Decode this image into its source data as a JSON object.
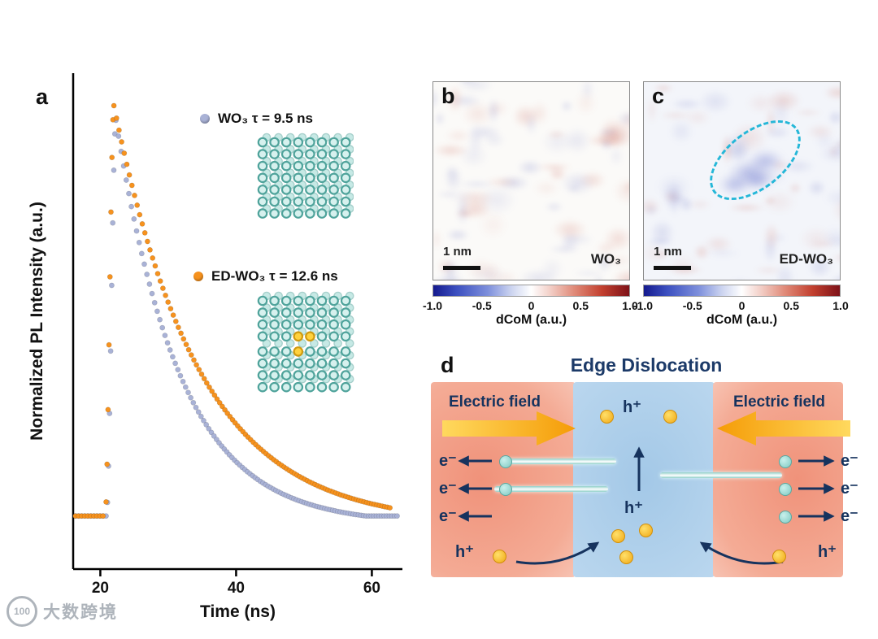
{
  "panel_a": {
    "label": "a"
  },
  "panel_b": {
    "label": "b",
    "scale_bar": "1 nm",
    "sample": "WO₃",
    "colorbar": {
      "ticks": [
        "-1.0",
        "-0.5",
        "0",
        "0.5",
        "1.0"
      ],
      "label": "dCoM (a.u.)"
    }
  },
  "panel_c": {
    "label": "c",
    "scale_bar": "1 nm",
    "sample": "ED-WO₃",
    "colorbar": {
      "ticks": [
        "-1.0",
        "-0.5",
        "0",
        "0.5",
        "1.0"
      ],
      "label": "dCoM (a.u.)"
    }
  },
  "panel_d": {
    "label": "d",
    "title": "Edge Dislocation",
    "electric_field_left": "Electric field",
    "electric_field_right": "Electric field",
    "electron": "e⁻",
    "hole": "h⁺"
  },
  "watermark": {
    "logo": "100",
    "text": "大数跨境"
  },
  "chart_data": {
    "type": "scatter",
    "title": "",
    "xlabel": "Time (ns)",
    "ylabel": "Normalized PL Intensity (a.u.)",
    "xlim": [
      16,
      64.5
    ],
    "ylim": [
      0,
      1.05
    ],
    "xticks": [
      20,
      40,
      60
    ],
    "baseline": 0.02,
    "series": [
      {
        "name": "WO3",
        "label": "WO₃ τ = 9.5 ns",
        "tau_ns": 9.5,
        "color": "#a9b2d6",
        "rise_start": 20.9,
        "peak_time": 22.3,
        "peak": 0.965,
        "end_time": 64
      },
      {
        "name": "ED-WO3",
        "label": "ED-WO₃ τ = 12.6 ns",
        "tau_ns": 12.6,
        "color": "#f6921e",
        "rise_start": 20.7,
        "peak_time": 22.0,
        "peak": 1.0,
        "end_time": 63
      }
    ],
    "legend_position": "upper-right-inside",
    "grid": false
  }
}
